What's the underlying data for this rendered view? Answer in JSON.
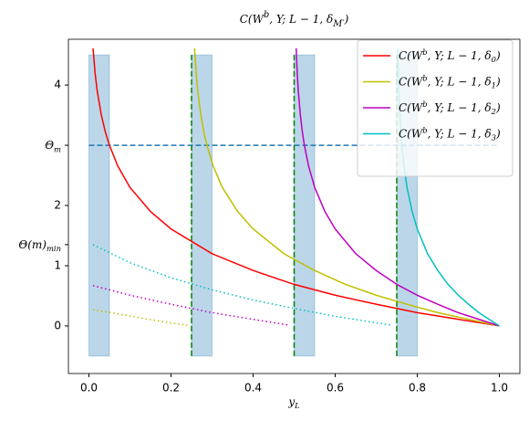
{
  "chart_data": {
    "type": "line",
    "title": [
      "C(W",
      "b",
      ", Y; L − 1, δ",
      "M′",
      ")"
    ],
    "xlabel": [
      "y",
      "L"
    ],
    "xlim": [
      -0.05,
      1.05
    ],
    "ylim": [
      -0.79,
      4.76
    ],
    "xticks": [
      {
        "value": 0,
        "label": "0.0"
      },
      0.2,
      0.4,
      0.6,
      0.8,
      {
        "value": 1,
        "label": "1.0"
      }
    ],
    "yticks": [
      0,
      1,
      {
        "value": 1.35,
        "label": [
          "Θ(m)",
          "min"
        ]
      },
      2,
      {
        "value": 3,
        "label": [
          "Θ",
          "m"
        ]
      },
      4
    ],
    "legend": "upper right",
    "series": [
      {
        "name": [
          "C(W",
          "b",
          ", Y; L − 1, δ",
          "0",
          ")"
        ],
        "color": "#ff0000",
        "x": [
          0.01,
          0.015,
          0.02,
          0.03,
          0.04,
          0.05,
          0.07,
          0.1,
          0.15,
          0.2,
          0.3,
          0.4,
          0.5,
          0.6,
          0.7,
          0.8,
          0.9,
          1.0
        ],
        "values": [
          4.61,
          4.2,
          3.91,
          3.51,
          3.22,
          3.0,
          2.66,
          2.3,
          1.9,
          1.61,
          1.2,
          0.92,
          0.69,
          0.51,
          0.36,
          0.22,
          0.11,
          0
        ]
      },
      {
        "name": [
          "C(W",
          "b",
          ", Y; L − 1, δ",
          "1",
          ")"
        ],
        "color": "#bfbf00",
        "x": [
          0.2575,
          0.2613,
          0.265,
          0.2725,
          0.28,
          0.2875,
          0.3025,
          0.325,
          0.3625,
          0.4,
          0.475,
          0.55,
          0.625,
          0.7,
          0.775,
          0.85,
          0.925,
          1.0
        ],
        "values": [
          4.61,
          4.2,
          3.91,
          3.51,
          3.22,
          3.0,
          2.66,
          2.3,
          1.9,
          1.61,
          1.2,
          0.92,
          0.69,
          0.51,
          0.36,
          0.22,
          0.11,
          0
        ]
      },
      {
        "name": [
          "C(W",
          "b",
          ", Y; L − 1, δ",
          "2",
          ")"
        ],
        "color": "#bf00bf",
        "x": [
          0.505,
          0.5075,
          0.51,
          0.515,
          0.52,
          0.525,
          0.535,
          0.55,
          0.575,
          0.6,
          0.65,
          0.7,
          0.75,
          0.8,
          0.85,
          0.9,
          0.95,
          1.0
        ],
        "values": [
          4.61,
          4.2,
          3.91,
          3.51,
          3.22,
          3.0,
          2.66,
          2.3,
          1.9,
          1.61,
          1.2,
          0.92,
          0.69,
          0.51,
          0.36,
          0.22,
          0.11,
          0
        ]
      },
      {
        "name": [
          "C(W",
          "b",
          ", Y; L − 1, δ",
          "3",
          ")"
        ],
        "color": "#00bfbf",
        "x": [
          0.7525,
          0.7538,
          0.755,
          0.7575,
          0.76,
          0.7625,
          0.7675,
          0.775,
          0.7875,
          0.8,
          0.825,
          0.85,
          0.875,
          0.9,
          0.925,
          0.95,
          0.975,
          1.0
        ],
        "values": [
          4.61,
          4.2,
          3.91,
          3.51,
          3.22,
          3.0,
          2.66,
          2.3,
          1.9,
          1.61,
          1.2,
          0.92,
          0.69,
          0.51,
          0.36,
          0.22,
          0.11,
          0
        ]
      }
    ],
    "dotted_series": [
      {
        "color": "#bfbf00",
        "x": [
          0.01,
          0.07,
          0.13,
          0.19,
          0.24
        ],
        "values": [
          0.27,
          0.2,
          0.13,
          0.06,
          0.01
        ]
      },
      {
        "color": "#bf00bf",
        "x": [
          0.01,
          0.1,
          0.2,
          0.3,
          0.4,
          0.49
        ],
        "values": [
          0.67,
          0.51,
          0.36,
          0.22,
          0.11,
          0.01
        ]
      },
      {
        "color": "#00bfbf",
        "x": [
          0.01,
          0.1,
          0.2,
          0.3,
          0.4,
          0.5,
          0.6,
          0.74
        ],
        "values": [
          1.35,
          1.05,
          0.8,
          0.6,
          0.43,
          0.29,
          0.16,
          0.01
        ]
      }
    ],
    "spans": [
      {
        "x": [
          0,
          0.05
        ],
        "y": [
          -0.5,
          4.5
        ]
      },
      {
        "x": [
          0.25,
          0.3
        ],
        "y": [
          -0.5,
          4.5
        ]
      },
      {
        "x": [
          0.5,
          0.55
        ],
        "y": [
          -0.5,
          4.5
        ]
      },
      {
        "x": [
          0.75,
          0.8
        ],
        "y": [
          -0.5,
          4.5
        ]
      }
    ],
    "span_color": "#1f77b4",
    "vlines": [
      {
        "x": 0.25,
        "y": [
          -0.5,
          4.5
        ]
      },
      {
        "x": 0.5,
        "y": [
          -0.5,
          4.5
        ]
      },
      {
        "x": 0.75,
        "y": [
          -0.5,
          4.5
        ]
      }
    ],
    "vline_color": "#008000",
    "hline": {
      "y": 3,
      "x": [
        0,
        1
      ],
      "color": "#1f77b4"
    }
  }
}
